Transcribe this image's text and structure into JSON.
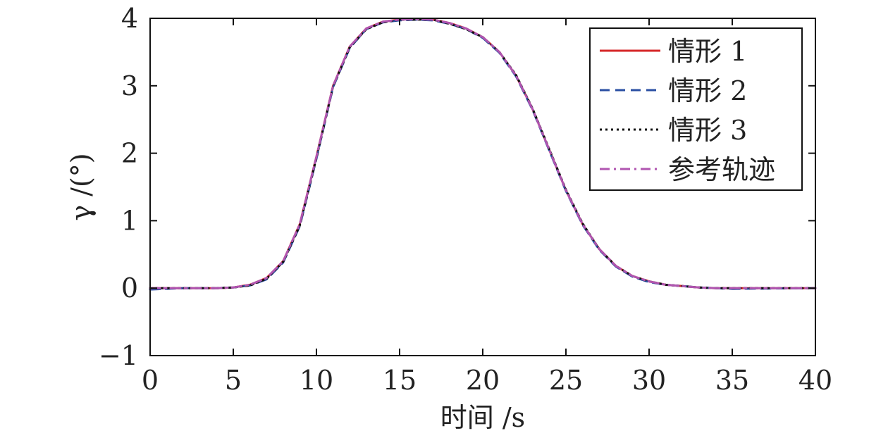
{
  "chart_data": {
    "type": "line",
    "xlabel": "时间 /s",
    "ylabel": "γ /(°)",
    "xlim": [
      0,
      40
    ],
    "ylim": [
      -1,
      4
    ],
    "xticks": [
      0,
      5,
      10,
      15,
      20,
      25,
      30,
      35,
      40
    ],
    "yticks": [
      -1,
      0,
      1,
      2,
      3,
      4
    ],
    "xtick_labels": [
      "0",
      "5",
      "10",
      "15",
      "20",
      "25",
      "30",
      "35",
      "40"
    ],
    "ytick_labels": [
      "−1",
      "0",
      "1",
      "2",
      "3",
      "4"
    ],
    "grid": false,
    "legend_position": "top-right",
    "x": [
      0,
      2,
      4,
      5,
      6,
      7,
      8,
      9,
      10,
      11,
      12,
      13,
      14,
      15,
      16,
      17,
      18,
      19,
      20,
      21,
      22,
      23,
      24,
      25,
      26,
      27,
      28,
      29,
      30,
      31,
      32,
      33,
      34,
      35,
      40
    ],
    "series": [
      {
        "name": "情形 1",
        "color": "#d62728",
        "dash": "solid",
        "values": [
          0,
          0,
          0,
          0.01,
          0.05,
          0.15,
          0.4,
          0.95,
          1.95,
          3.0,
          3.58,
          3.85,
          3.95,
          3.98,
          3.99,
          3.98,
          3.93,
          3.85,
          3.72,
          3.5,
          3.15,
          2.65,
          2.05,
          1.45,
          0.95,
          0.58,
          0.33,
          0.18,
          0.1,
          0.05,
          0.03,
          0.01,
          0,
          0,
          0
        ]
      },
      {
        "name": "情形 2",
        "color": "#2a4fa3",
        "dash": "dashed",
        "values": [
          -0.02,
          0,
          0,
          0.01,
          0.04,
          0.13,
          0.38,
          0.92,
          1.92,
          2.98,
          3.56,
          3.84,
          3.94,
          3.97,
          3.98,
          3.97,
          3.92,
          3.84,
          3.71,
          3.49,
          3.14,
          2.64,
          2.04,
          1.44,
          0.94,
          0.57,
          0.32,
          0.17,
          0.09,
          0.05,
          0.03,
          0.01,
          0,
          -0.01,
          0
        ]
      },
      {
        "name": "情形 3",
        "color": "#111111",
        "dash": "dotted",
        "values": [
          0,
          0,
          0,
          0.01,
          0.04,
          0.14,
          0.39,
          0.93,
          1.93,
          2.99,
          3.57,
          3.84,
          3.94,
          3.98,
          3.98,
          3.98,
          3.92,
          3.84,
          3.72,
          3.5,
          3.16,
          2.66,
          2.06,
          1.46,
          0.96,
          0.58,
          0.33,
          0.18,
          0.1,
          0.05,
          0.03,
          0.01,
          0,
          0,
          0
        ]
      },
      {
        "name": "参考轨迹",
        "color": "#b055b0",
        "dash": "dashdot",
        "values": [
          0,
          0,
          0,
          0.01,
          0.05,
          0.15,
          0.4,
          0.95,
          1.95,
          3.0,
          3.58,
          3.85,
          3.95,
          3.98,
          3.99,
          3.98,
          3.93,
          3.85,
          3.72,
          3.5,
          3.15,
          2.65,
          2.05,
          1.45,
          0.95,
          0.58,
          0.33,
          0.18,
          0.1,
          0.05,
          0.03,
          0.01,
          0,
          0,
          0
        ]
      }
    ]
  }
}
